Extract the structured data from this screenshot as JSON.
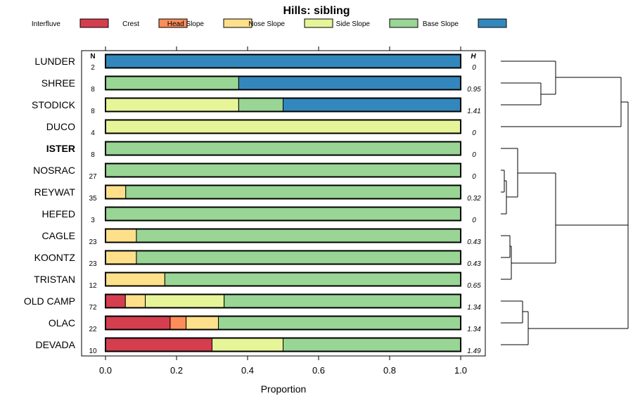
{
  "chart_data": {
    "type": "bar",
    "orientation": "horizontal",
    "stacked": true,
    "title": "Hills: sibling",
    "xlabel": "Proportion",
    "ylabel": "",
    "xlim": [
      0,
      1
    ],
    "x_ticks": [
      "0.0",
      "0.2",
      "0.4",
      "0.6",
      "0.8",
      "1.0"
    ],
    "n_header": "N",
    "h_header": "H",
    "highlight": "ISTER",
    "legend_position": "top",
    "colors": {
      "Interfluve": "#d53e4f",
      "Crest": "#fc8d59",
      "Head Slope": "#fee08b",
      "Nose Slope": "#e6f598",
      "Side Slope": "#99d594",
      "Base Slope": "#3288bd"
    },
    "legend": [
      "Interfluve",
      "Crest",
      "Head Slope",
      "Nose Slope",
      "Side Slope",
      "Base Slope"
    ],
    "categories": [
      "LUNDER",
      "SHREE",
      "STODICK",
      "DUCO",
      "ISTER",
      "NOSRAC",
      "REYWAT",
      "HEFED",
      "CAGLE",
      "KOONTZ",
      "TRISTAN",
      "OLD CAMP",
      "OLAC",
      "DEVADA"
    ],
    "n": [
      "2",
      "8",
      "8",
      "4",
      "8",
      "27",
      "35",
      "3",
      "23",
      "23",
      "12",
      "72",
      "22",
      "10"
    ],
    "h": [
      "0",
      "0.95",
      "1.41",
      "0",
      "0",
      "0",
      "0.32",
      "0",
      "0.43",
      "0.43",
      "0.65",
      "1.34",
      "1.34",
      "1.49"
    ],
    "series": [
      {
        "name": "Interfluve",
        "values": [
          0,
          0,
          0,
          0,
          0,
          0,
          0,
          0,
          0,
          0,
          0,
          0.056,
          0.182,
          0.3
        ]
      },
      {
        "name": "Crest",
        "values": [
          0,
          0,
          0,
          0,
          0,
          0,
          0,
          0,
          0,
          0,
          0,
          0,
          0.045,
          0
        ]
      },
      {
        "name": "Head Slope",
        "values": [
          0,
          0,
          0,
          0,
          0,
          0,
          0.057,
          0,
          0.087,
          0.087,
          0.167,
          0.056,
          0.091,
          0
        ]
      },
      {
        "name": "Nose Slope",
        "values": [
          0,
          0,
          0.375,
          1.0,
          0,
          0,
          0,
          0,
          0,
          0,
          0,
          0.222,
          0,
          0.2
        ]
      },
      {
        "name": "Side Slope",
        "values": [
          0,
          0.375,
          0.125,
          0,
          1.0,
          1.0,
          0.943,
          1.0,
          0.913,
          0.913,
          0.833,
          0.666,
          0.682,
          0.5
        ]
      },
      {
        "name": "Base Slope",
        "values": [
          1.0,
          0.625,
          0.5,
          0,
          0,
          0,
          0,
          0,
          0,
          0,
          0,
          0,
          0,
          0
        ]
      }
    ]
  }
}
